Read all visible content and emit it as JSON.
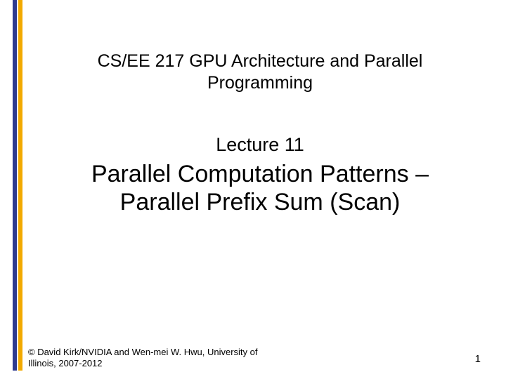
{
  "stripes": {
    "color1": "#2e3b8f",
    "color2": "#f2a900"
  },
  "course": {
    "title_line1": "CS/EE 217 GPU Architecture and Parallel",
    "title_line2": "Programming",
    "fontsize": 25,
    "color": "#000000"
  },
  "lecture": {
    "number": "Lecture 11",
    "fontsize": 27,
    "color": "#000000"
  },
  "title": {
    "line1": "Parallel Computation Patterns –",
    "line2": "Parallel Prefix Sum (Scan)",
    "fontsize": 34,
    "color": "#000000"
  },
  "footer": {
    "copyright": "© David Kirk/NVIDIA and Wen-mei W. Hwu, University of Illinois, 2007-2012",
    "page": "1",
    "fontsize": 13,
    "color": "#000000"
  }
}
